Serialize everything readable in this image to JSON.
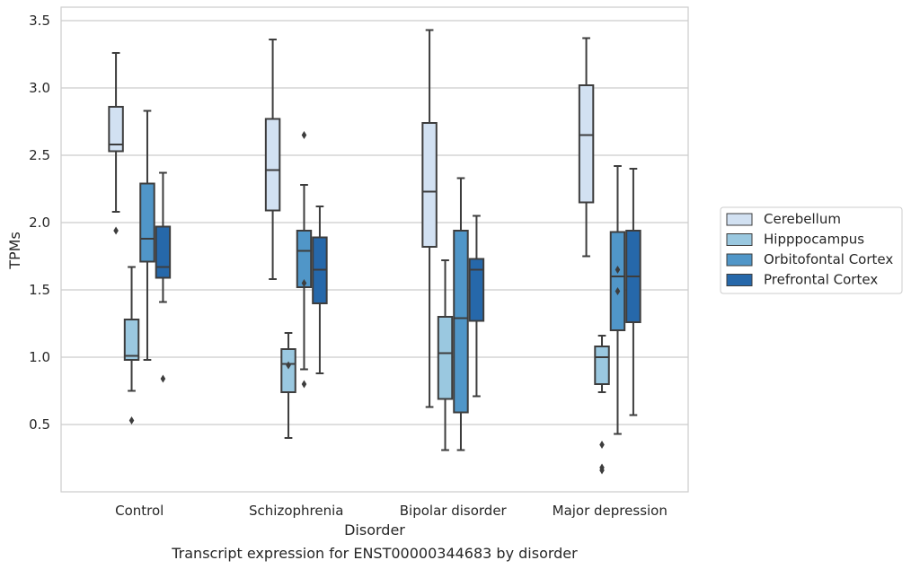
{
  "chart_data": {
    "type": "box",
    "caption": "Transcript expression for ENST00000344683 by disorder",
    "xlabel": "Disorder",
    "ylabel": "TPMs",
    "ylim": [
      0.0,
      3.6
    ],
    "yticks": [
      0.5,
      1.0,
      1.5,
      2.0,
      2.5,
      3.0,
      3.5
    ],
    "ytick_labels": [
      "0.5",
      "1.0",
      "1.5",
      "2.0",
      "2.5",
      "3.0",
      "3.5"
    ],
    "grid": true,
    "legend_position": "right",
    "categories": [
      "Control",
      "Schizophrenia",
      "Bipolar disorder",
      "Major depression"
    ],
    "series": [
      {
        "name": "Cerebellum",
        "color": "#d2e1f2",
        "boxes": [
          {
            "whisker_low": 2.08,
            "q1": 2.53,
            "median": 2.58,
            "q3": 2.86,
            "whisker_high": 3.26,
            "outliers": [
              1.94
            ]
          },
          {
            "whisker_low": 1.58,
            "q1": 2.09,
            "median": 2.39,
            "q3": 2.77,
            "whisker_high": 3.36,
            "outliers": []
          },
          {
            "whisker_low": 0.63,
            "q1": 1.82,
            "median": 2.23,
            "q3": 2.74,
            "whisker_high": 3.43,
            "outliers": []
          },
          {
            "whisker_low": 1.75,
            "q1": 2.15,
            "median": 2.65,
            "q3": 3.02,
            "whisker_high": 3.37,
            "outliers": []
          }
        ]
      },
      {
        "name": "Hipppocampus",
        "color": "#9ac8e0",
        "boxes": [
          {
            "whisker_low": 0.75,
            "q1": 0.98,
            "median": 1.01,
            "q3": 1.28,
            "whisker_high": 1.67,
            "outliers": [
              0.53
            ]
          },
          {
            "whisker_low": 0.4,
            "q1": 0.74,
            "median": 0.95,
            "q3": 1.06,
            "whisker_high": 1.18,
            "outliers": [
              0.94
            ]
          },
          {
            "whisker_low": 0.31,
            "q1": 0.69,
            "median": 1.03,
            "q3": 1.3,
            "whisker_high": 1.72,
            "outliers": []
          },
          {
            "whisker_low": 0.74,
            "q1": 0.8,
            "median": 1.0,
            "q3": 1.08,
            "whisker_high": 1.16,
            "outliers": [
              0.35,
              0.18,
              0.16
            ]
          }
        ]
      },
      {
        "name": "Orbitofontal Cortex",
        "color": "#5096c8",
        "boxes": [
          {
            "whisker_low": 0.98,
            "q1": 1.71,
            "median": 1.88,
            "q3": 2.29,
            "whisker_high": 2.83,
            "outliers": []
          },
          {
            "whisker_low": 0.91,
            "q1": 1.52,
            "median": 1.79,
            "q3": 1.94,
            "whisker_high": 2.28,
            "outliers": [
              2.65,
              1.55,
              0.8
            ]
          },
          {
            "whisker_low": 0.31,
            "q1": 0.59,
            "median": 1.29,
            "q3": 1.94,
            "whisker_high": 2.33,
            "outliers": []
          },
          {
            "whisker_low": 0.43,
            "q1": 1.2,
            "median": 1.6,
            "q3": 1.93,
            "whisker_high": 2.42,
            "outliers": [
              1.65,
              1.49
            ]
          }
        ]
      },
      {
        "name": "Prefrontal Cortex",
        "color": "#2668aa",
        "boxes": [
          {
            "whisker_low": 1.41,
            "q1": 1.59,
            "median": 1.67,
            "q3": 1.97,
            "whisker_high": 2.37,
            "outliers": [
              0.84
            ]
          },
          {
            "whisker_low": 0.88,
            "q1": 1.4,
            "median": 1.65,
            "q3": 1.89,
            "whisker_high": 2.12,
            "outliers": []
          },
          {
            "whisker_low": 0.71,
            "q1": 1.27,
            "median": 1.65,
            "q3": 1.73,
            "whisker_high": 2.05,
            "outliers": []
          },
          {
            "whisker_low": 0.57,
            "q1": 1.26,
            "median": 1.6,
            "q3": 1.94,
            "whisker_high": 2.4,
            "outliers": []
          }
        ]
      }
    ]
  }
}
